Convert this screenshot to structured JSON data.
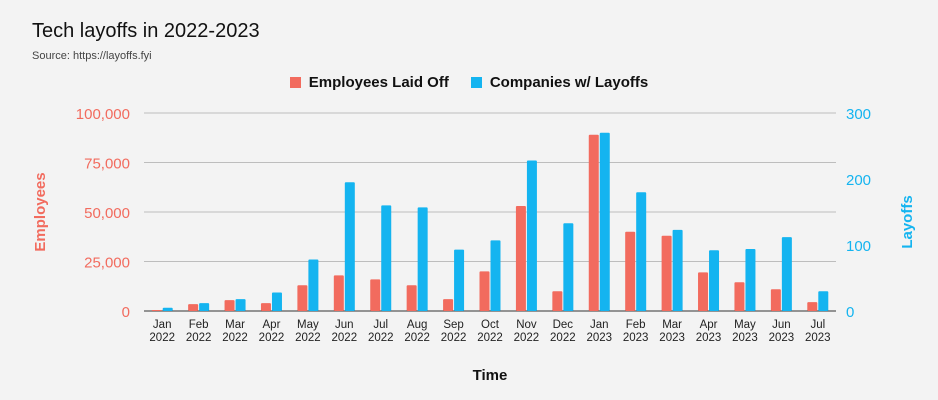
{
  "chart_data": {
    "type": "bar",
    "title": "Tech layoffs in 2022-2023",
    "subtitle": "Source: https://layoffs.fyi",
    "xlabel": "Time",
    "ylabel_left": "Employees",
    "ylabel_right": "Layoffs",
    "categories": [
      [
        "Jan",
        "2022"
      ],
      [
        "Feb",
        "2022"
      ],
      [
        "Mar",
        "2022"
      ],
      [
        "Apr",
        "2022"
      ],
      [
        "May",
        "2022"
      ],
      [
        "Jun",
        "2022"
      ],
      [
        "Jul",
        "2022"
      ],
      [
        "Aug",
        "2022"
      ],
      [
        "Sep",
        "2022"
      ],
      [
        "Oct",
        "2022"
      ],
      [
        "Nov",
        "2022"
      ],
      [
        "Dec",
        "2022"
      ],
      [
        "Jan",
        "2023"
      ],
      [
        "Feb",
        "2023"
      ],
      [
        "Mar",
        "2023"
      ],
      [
        "Apr",
        "2023"
      ],
      [
        "May",
        "2023"
      ],
      [
        "Jun",
        "2023"
      ],
      [
        "Jul",
        "2023"
      ]
    ],
    "series": [
      {
        "name": "Employees Laid Off",
        "axis": "left",
        "color": "#f26b5e",
        "values": [
          500,
          3500,
          5500,
          4000,
          13000,
          18000,
          16000,
          13000,
          6000,
          20000,
          53000,
          10000,
          89000,
          40000,
          38000,
          19500,
          14500,
          11000,
          4500
        ]
      },
      {
        "name": "Companies w/ Layoffs",
        "axis": "right",
        "color": "#14b4f0",
        "values": [
          5,
          12,
          18,
          28,
          78,
          195,
          160,
          157,
          93,
          107,
          228,
          133,
          270,
          180,
          123,
          92,
          94,
          112,
          30
        ]
      }
    ],
    "ylim_left": [
      0,
      100000
    ],
    "ylim_right": [
      0,
      300
    ],
    "yticks_left": [
      "0",
      "25,000",
      "50,000",
      "75,000",
      "100,000"
    ],
    "yticks_right": [
      "0",
      "100",
      "200",
      "300"
    ],
    "grid": true,
    "legend_position": "top-center",
    "left_axis_color": "#f26b5e",
    "right_axis_color": "#14b4f0"
  }
}
